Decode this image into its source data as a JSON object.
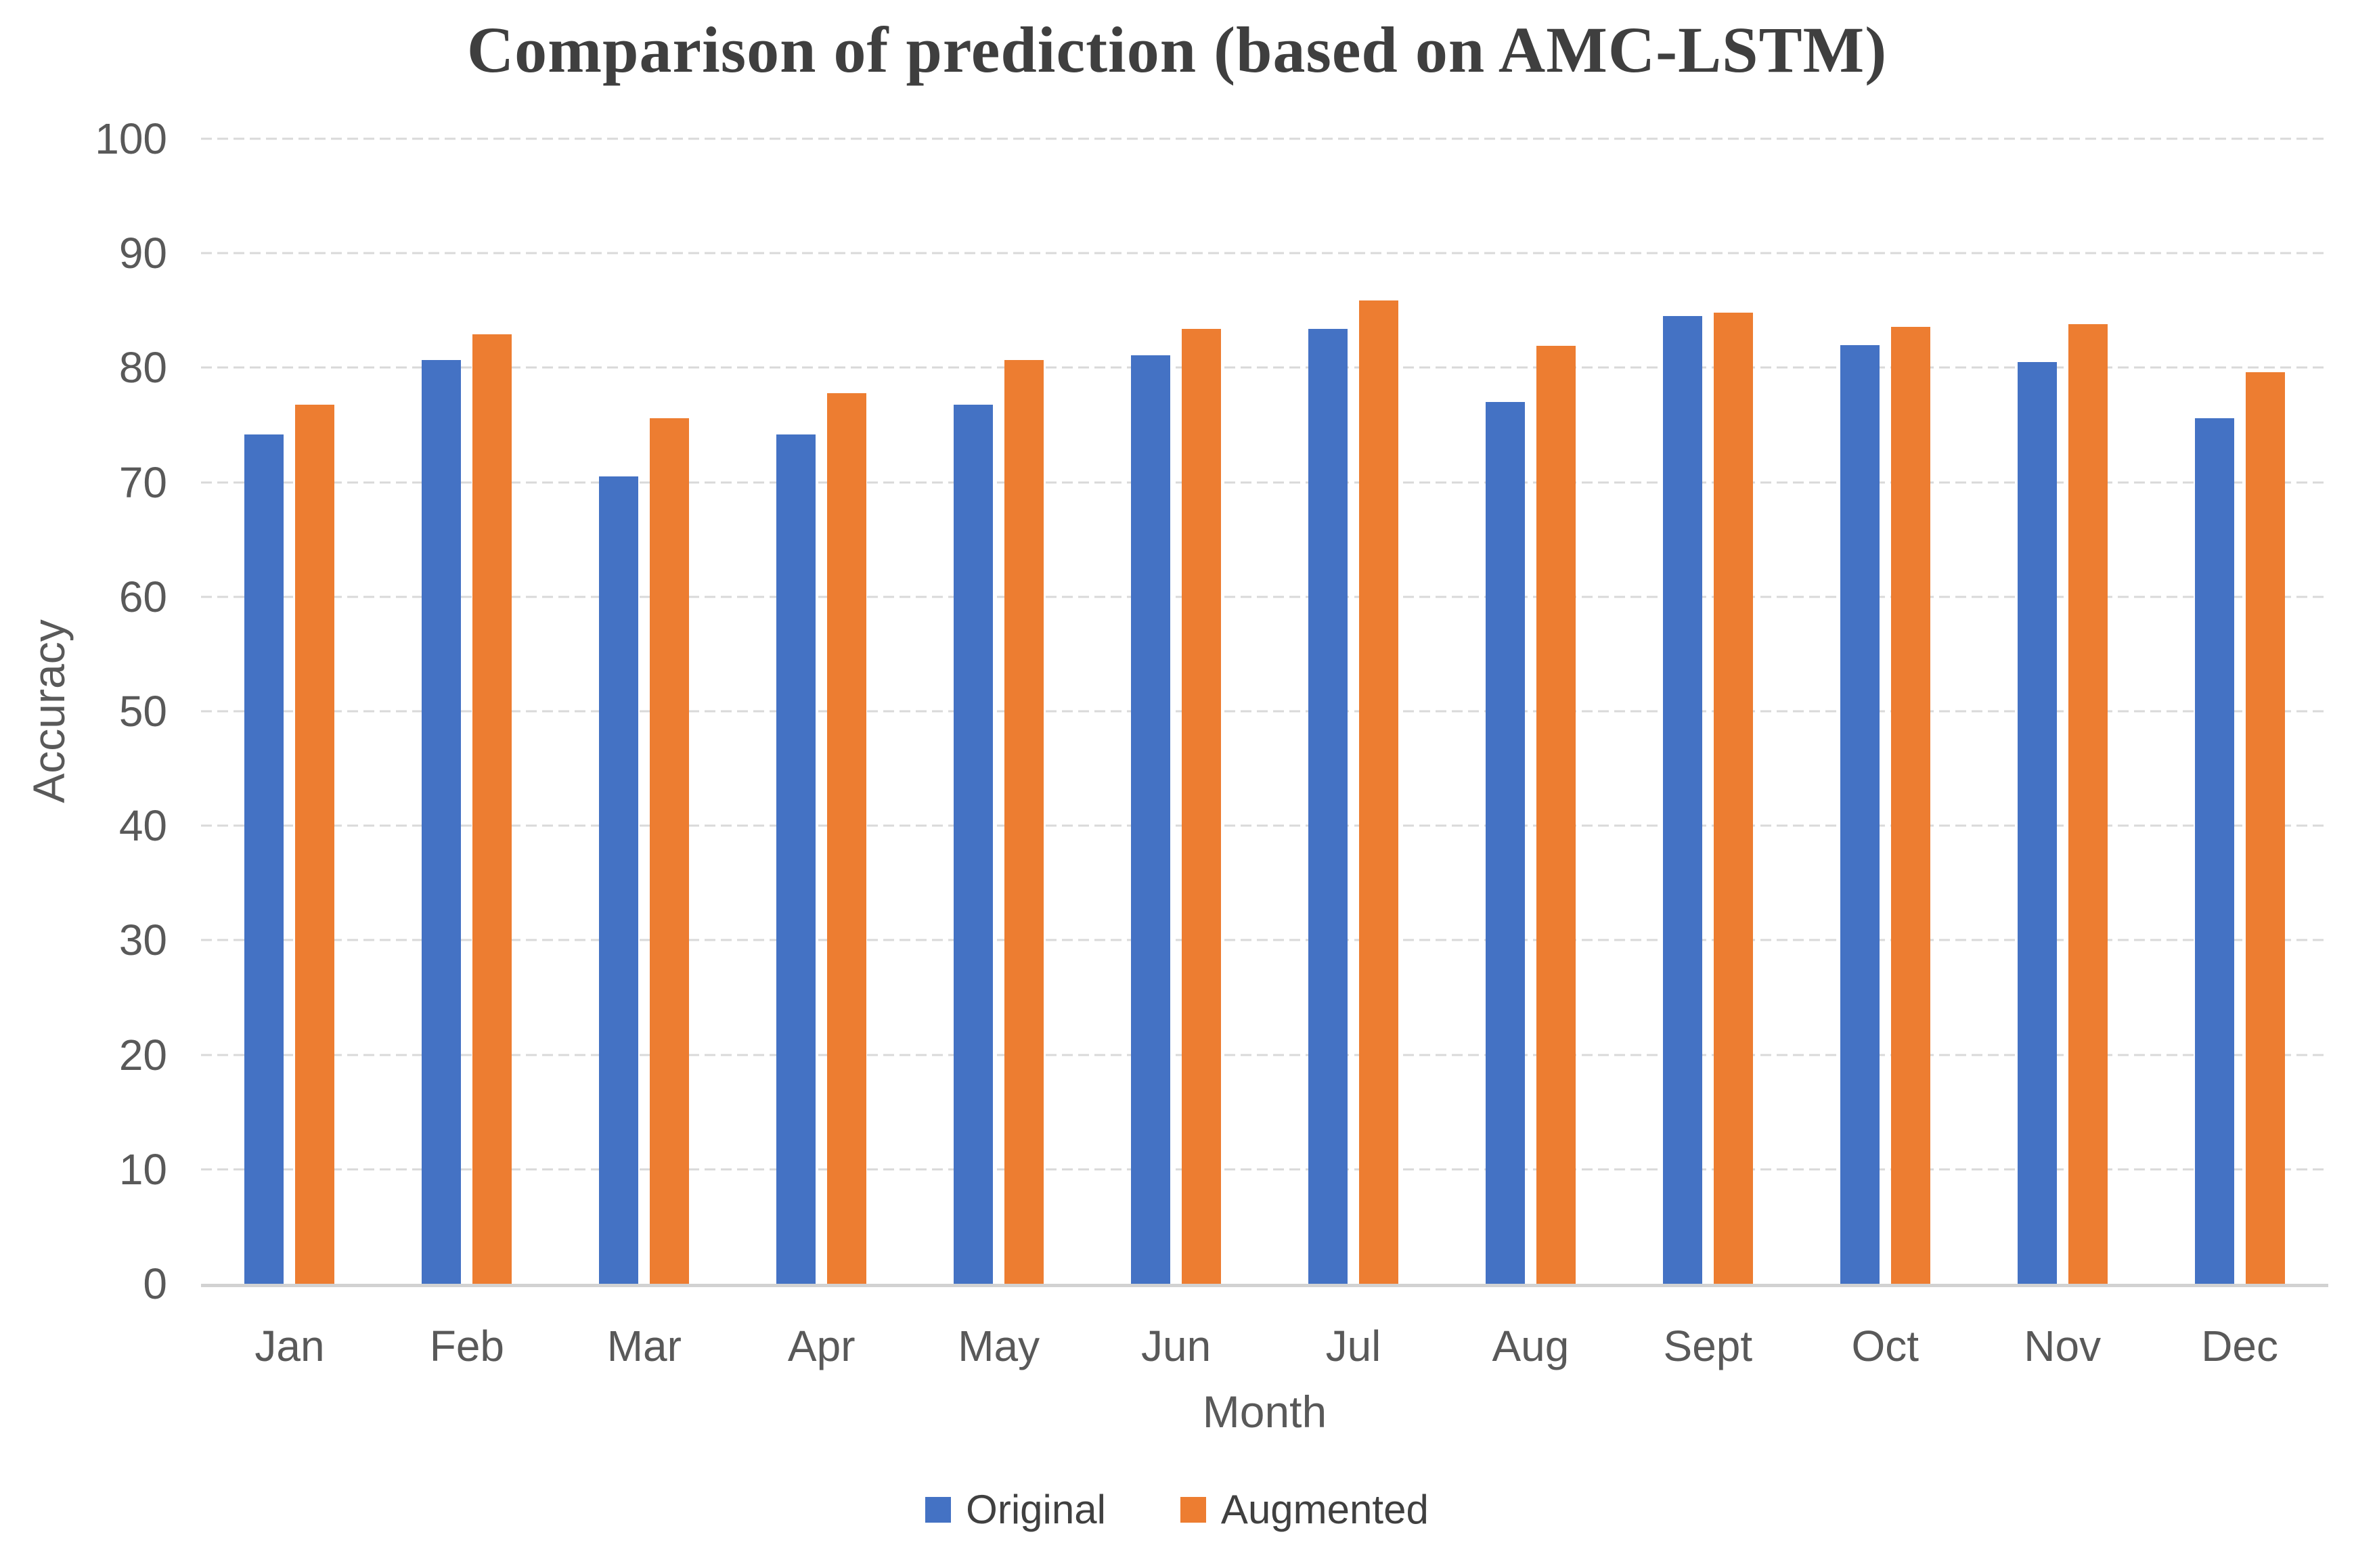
{
  "title": "Comparison of prediction (based on AMC-LSTM)",
  "colors": {
    "original": "#4472C4",
    "augmented": "#ED7D31",
    "gridline": "#D9D9D9",
    "axis_line": "#D2D2D2",
    "axis_text": "#595959",
    "title_text": "#3F3F3F"
  },
  "chart_data": {
    "type": "bar",
    "title": "Comparison of prediction (based on AMC-LSTM)",
    "xlabel": "Month",
    "ylabel": "Accuracy",
    "ylim": [
      0,
      100
    ],
    "ytick_step": 10,
    "yticks": [
      0,
      10,
      20,
      30,
      40,
      50,
      60,
      70,
      80,
      90,
      100
    ],
    "grid": true,
    "legend_position": "bottom",
    "categories": [
      "Jan",
      "Feb",
      "Mar",
      "Apr",
      "May",
      "Jun",
      "Jul",
      "Aug",
      "Sept",
      "Oct",
      "Nov",
      "Dec"
    ],
    "series": [
      {
        "name": "Original",
        "color": "#4472C4",
        "values": [
          74.2,
          80.7,
          70.5,
          74.2,
          76.8,
          81.1,
          83.4,
          77.0,
          84.5,
          82.0,
          80.5,
          75.6
        ]
      },
      {
        "name": "Augmented",
        "color": "#ED7D31",
        "values": [
          76.8,
          82.9,
          75.6,
          77.8,
          80.7,
          83.4,
          85.9,
          81.9,
          84.8,
          83.6,
          83.8,
          79.6
        ]
      }
    ]
  },
  "legend": {
    "items": [
      {
        "label": "Original",
        "color": "#4472C4"
      },
      {
        "label": "Augmented",
        "color": "#ED7D31"
      }
    ]
  }
}
